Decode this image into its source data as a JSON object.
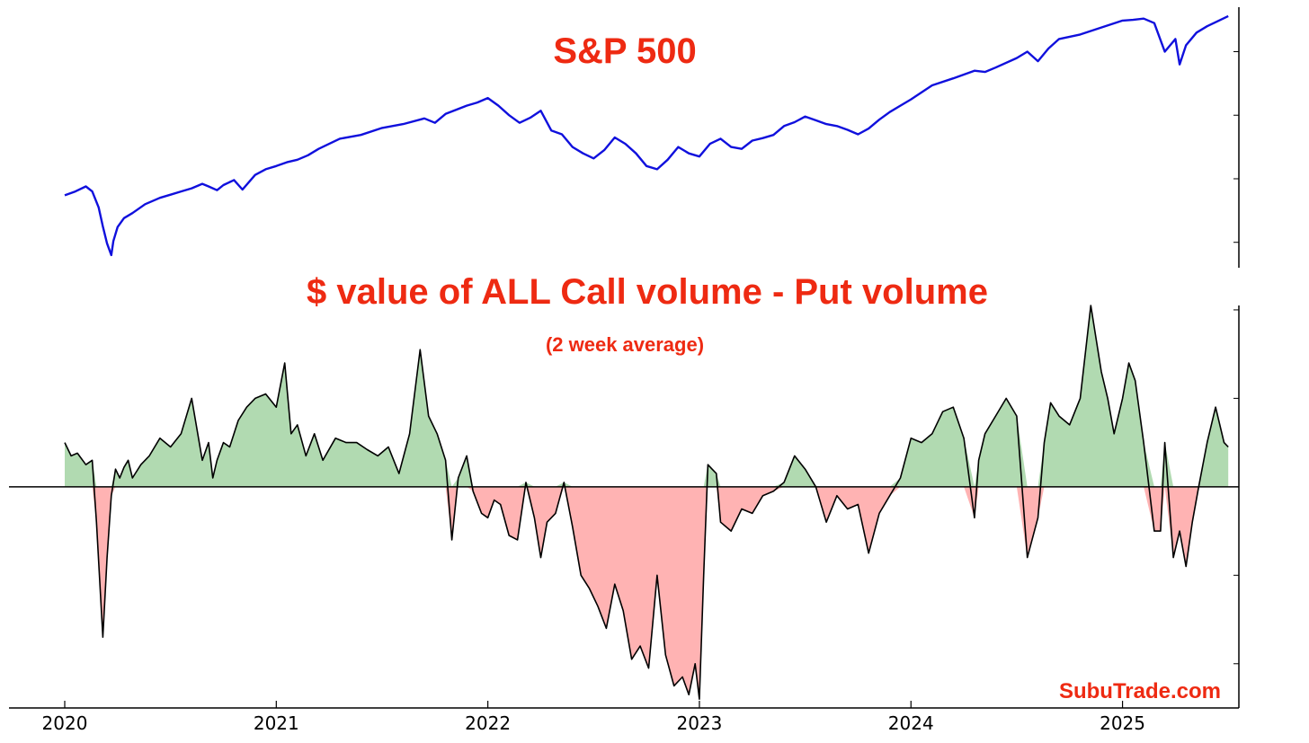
{
  "colors": {
    "title": "#ee2a12",
    "price_line": "#1010dd",
    "positive_fill": "#b1dab1",
    "negative_fill": "#ffb3b3",
    "flow_line": "#000000",
    "axis": "#000000"
  },
  "watermark": "SubuTrade.com",
  "chart_data": [
    {
      "type": "line",
      "title": "S&P 500",
      "subtitle": "",
      "xlabel": "",
      "ylabel": "",
      "xlim": [
        2020.0,
        2025.55
      ],
      "ylim": [
        2100,
        6200
      ],
      "y_axis_side": "right",
      "y_tick_labels_shown": false,
      "grid": false,
      "legend": "none",
      "series": [
        {
          "x": [
            2020.0,
            2020.05,
            2020.1,
            2020.13,
            2020.16,
            2020.18,
            2020.2,
            2020.22,
            2020.23,
            2020.25,
            2020.28,
            2020.32,
            2020.38,
            2020.45,
            2020.5,
            2020.55,
            2020.6,
            2020.65,
            2020.68,
            2020.72,
            2020.75,
            2020.8,
            2020.84,
            2020.9,
            2020.95,
            2021.0,
            2021.05,
            2021.1,
            2021.15,
            2021.2,
            2021.3,
            2021.4,
            2021.5,
            2021.6,
            2021.7,
            2021.75,
            2021.8,
            2021.9,
            2021.95,
            2022.0,
            2022.05,
            2022.1,
            2022.15,
            2022.2,
            2022.25,
            2022.3,
            2022.35,
            2022.4,
            2022.45,
            2022.5,
            2022.55,
            2022.6,
            2022.65,
            2022.7,
            2022.75,
            2022.8,
            2022.85,
            2022.9,
            2022.95,
            2023.0,
            2023.05,
            2023.1,
            2023.15,
            2023.2,
            2023.25,
            2023.3,
            2023.35,
            2023.4,
            2023.45,
            2023.5,
            2023.55,
            2023.6,
            2023.65,
            2023.7,
            2023.75,
            2023.8,
            2023.85,
            2023.9,
            2023.95,
            2024.0,
            2024.1,
            2024.2,
            2024.3,
            2024.35,
            2024.4,
            2024.5,
            2024.55,
            2024.6,
            2024.65,
            2024.7,
            2024.8,
            2024.9,
            2025.0,
            2025.05,
            2025.1,
            2025.15,
            2025.2,
            2025.25,
            2025.27,
            2025.3,
            2025.35,
            2025.4,
            2025.45,
            2025.5
          ],
          "y": [
            3240,
            3300,
            3380,
            3300,
            3050,
            2750,
            2480,
            2300,
            2520,
            2740,
            2880,
            2960,
            3100,
            3200,
            3250,
            3300,
            3350,
            3420,
            3380,
            3320,
            3400,
            3480,
            3330,
            3560,
            3650,
            3700,
            3760,
            3800,
            3870,
            3970,
            4130,
            4190,
            4300,
            4360,
            4450,
            4380,
            4520,
            4650,
            4700,
            4770,
            4650,
            4500,
            4380,
            4460,
            4570,
            4260,
            4200,
            4000,
            3900,
            3820,
            3950,
            4150,
            4050,
            3900,
            3700,
            3650,
            3800,
            4000,
            3900,
            3850,
            4050,
            4130,
            4000,
            3970,
            4100,
            4140,
            4190,
            4330,
            4390,
            4480,
            4420,
            4360,
            4330,
            4270,
            4200,
            4290,
            4430,
            4550,
            4650,
            4750,
            4970,
            5080,
            5200,
            5180,
            5250,
            5400,
            5500,
            5350,
            5550,
            5700,
            5770,
            5880,
            5990,
            6000,
            6020,
            5950,
            5500,
            5700,
            5300,
            5600,
            5800,
            5900,
            5980,
            6060
          ]
        }
      ]
    },
    {
      "type": "area",
      "title": "$ value of ALL Call volume - Put volume",
      "subtitle": "(2 week average)",
      "xlabel": "",
      "ylabel": "",
      "xlim": [
        2020.0,
        2025.55
      ],
      "ylim": [
        -2.5,
        2.05
      ],
      "x_ticks": [
        2020,
        2021,
        2022,
        2023,
        2024,
        2025
      ],
      "x_tick_labels": [
        "2020",
        "2021",
        "2022",
        "2023",
        "2024",
        "2025"
      ],
      "y_axis_side": "right",
      "y_tick_labels_shown": false,
      "baseline": 0,
      "grid": false,
      "legend": "none",
      "series": [
        {
          "x": [
            2020.0,
            2020.03,
            2020.06,
            2020.1,
            2020.13,
            2020.15,
            2020.18,
            2020.2,
            2020.22,
            2020.24,
            2020.26,
            2020.28,
            2020.3,
            2020.32,
            2020.36,
            2020.4,
            2020.45,
            2020.5,
            2020.55,
            2020.6,
            2020.65,
            2020.68,
            2020.7,
            2020.72,
            2020.75,
            2020.78,
            2020.82,
            2020.86,
            2020.9,
            2020.95,
            2021.0,
            2021.04,
            2021.07,
            2021.1,
            2021.14,
            2021.18,
            2021.22,
            2021.28,
            2021.33,
            2021.38,
            2021.43,
            2021.48,
            2021.53,
            2021.58,
            2021.63,
            2021.68,
            2021.72,
            2021.76,
            2021.8,
            2021.83,
            2021.86,
            2021.9,
            2021.93,
            2021.97,
            2022.0,
            2022.03,
            2022.06,
            2022.1,
            2022.14,
            2022.18,
            2022.22,
            2022.25,
            2022.28,
            2022.32,
            2022.36,
            2022.4,
            2022.44,
            2022.48,
            2022.52,
            2022.56,
            2022.6,
            2022.64,
            2022.68,
            2022.72,
            2022.76,
            2022.8,
            2022.84,
            2022.88,
            2022.92,
            2022.95,
            2022.98,
            2023.0,
            2023.02,
            2023.04,
            2023.06,
            2023.08,
            2023.1,
            2023.15,
            2023.2,
            2023.25,
            2023.3,
            2023.35,
            2023.4,
            2023.45,
            2023.5,
            2023.55,
            2023.6,
            2023.65,
            2023.7,
            2023.75,
            2023.8,
            2023.85,
            2023.9,
            2023.95,
            2024.0,
            2024.05,
            2024.1,
            2024.15,
            2024.2,
            2024.25,
            2024.3,
            2024.32,
            2024.35,
            2024.4,
            2024.45,
            2024.5,
            2024.55,
            2024.6,
            2024.63,
            2024.66,
            2024.7,
            2024.75,
            2024.8,
            2024.85,
            2024.9,
            2024.93,
            2024.96,
            2025.0,
            2025.03,
            2025.06,
            2025.1,
            2025.15,
            2025.18,
            2025.2,
            2025.24,
            2025.27,
            2025.3,
            2025.33,
            2025.36,
            2025.4,
            2025.44,
            2025.48,
            2025.5
          ],
          "y": [
            0.5,
            0.35,
            0.38,
            0.25,
            0.3,
            -0.4,
            -1.7,
            -0.8,
            -0.1,
            0.2,
            0.1,
            0.22,
            0.3,
            0.1,
            0.25,
            0.35,
            0.55,
            0.45,
            0.6,
            1.0,
            0.3,
            0.5,
            0.1,
            0.3,
            0.5,
            0.45,
            0.75,
            0.9,
            1.0,
            1.05,
            0.9,
            1.4,
            0.6,
            0.7,
            0.35,
            0.6,
            0.3,
            0.55,
            0.5,
            0.5,
            0.42,
            0.35,
            0.45,
            0.15,
            0.6,
            1.55,
            0.8,
            0.6,
            0.3,
            -0.6,
            0.1,
            0.35,
            -0.05,
            -0.3,
            -0.35,
            -0.15,
            -0.2,
            -0.55,
            -0.6,
            0.05,
            -0.35,
            -0.8,
            -0.4,
            -0.3,
            0.05,
            -0.45,
            -1.0,
            -1.15,
            -1.35,
            -1.6,
            -1.1,
            -1.4,
            -1.95,
            -1.8,
            -2.05,
            -1.0,
            -1.9,
            -2.25,
            -2.15,
            -2.35,
            -2.0,
            -2.4,
            -1.0,
            0.25,
            0.2,
            0.15,
            -0.4,
            -0.5,
            -0.25,
            -0.3,
            -0.1,
            -0.05,
            0.05,
            0.35,
            0.2,
            0.0,
            -0.4,
            -0.1,
            -0.25,
            -0.2,
            -0.75,
            -0.3,
            -0.1,
            0.1,
            0.55,
            0.5,
            0.6,
            0.85,
            0.9,
            0.55,
            -0.35,
            0.3,
            0.6,
            0.8,
            1.0,
            0.8,
            -0.8,
            -0.35,
            0.5,
            0.95,
            0.8,
            0.7,
            1.0,
            2.05,
            1.3,
            1.0,
            0.6,
            1.0,
            1.4,
            1.2,
            0.5,
            -0.5,
            -0.5,
            0.5,
            -0.8,
            -0.5,
            -0.9,
            -0.4,
            0.0,
            0.5,
            0.9,
            0.5,
            0.45
          ]
        }
      ]
    }
  ]
}
